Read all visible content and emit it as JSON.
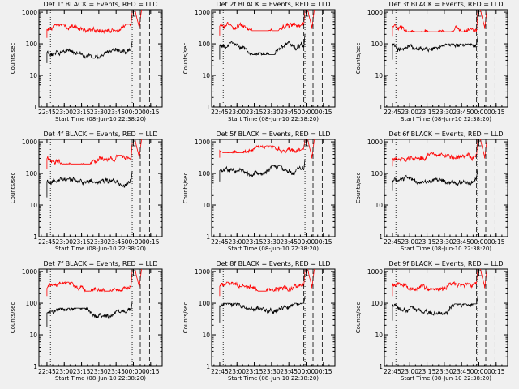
{
  "figure": {
    "background": "#f0f0f0"
  },
  "chart_data": [
    {
      "type": "line",
      "title": "Det 1f BLACK = Events, RED = LLD",
      "xlabel": "Start Time (08-Jun-10 22:38:20)",
      "ylabel": "Counts/sec",
      "x_ticks": [
        "22:45",
        "23:00",
        "23:15",
        "23:30",
        "23:45",
        "00:00",
        "00:15"
      ],
      "y_scale": "log",
      "y_ticks": [
        "1",
        "10",
        "100",
        "1000"
      ],
      "ylim": [
        1,
        1200
      ],
      "series": [
        {
          "color": "#ff0000",
          "start": "22:45",
          "end": "23:58",
          "level": 300,
          "min": 220,
          "max": 420
        },
        {
          "color": "#000000",
          "start": "22:45",
          "end": "23:58",
          "level": 55,
          "min": 35,
          "max": 75
        }
      ],
      "vlines": [
        {
          "style": "dotted",
          "x": "22:48"
        },
        {
          "style": "dashed",
          "x": "23:58"
        },
        {
          "style": "dotted",
          "x": "23:59"
        },
        {
          "style": "dashed",
          "x": "00:06"
        },
        {
          "style": "dashed",
          "x": "00:14"
        }
      ]
    },
    {
      "type": "line",
      "title": "Det 2f BLACK = Events, RED = LLD",
      "xlabel": "Start Time (08-Jun-10 22:38:20)",
      "ylabel": "Counts/sec",
      "x_ticks": [
        "22:45",
        "23:00",
        "23:15",
        "23:30",
        "23:45",
        "00:00",
        "00:15"
      ],
      "y_scale": "log",
      "y_ticks": [
        "1",
        "10",
        "100",
        "1000"
      ],
      "ylim": [
        1,
        1200
      ],
      "series": [
        {
          "color": "#ff0000",
          "start": "22:45",
          "end": "23:58",
          "level": 340,
          "min": 260,
          "max": 480
        },
        {
          "color": "#000000",
          "start": "22:45",
          "end": "23:58",
          "level": 75,
          "min": 45,
          "max": 130
        }
      ],
      "vlines": [
        {
          "style": "dotted",
          "x": "22:48"
        },
        {
          "style": "dashed",
          "x": "23:58"
        },
        {
          "style": "dotted",
          "x": "23:59"
        },
        {
          "style": "dashed",
          "x": "00:06"
        },
        {
          "style": "dashed",
          "x": "00:14"
        }
      ]
    },
    {
      "type": "line",
      "title": "Det 3f BLACK = Events, RED = LLD",
      "xlabel": "Start Time (08-Jun-10 22:38:20)",
      "ylabel": "Counts/sec",
      "x_ticks": [
        "22:45",
        "23:00",
        "23:15",
        "23:30",
        "23:45",
        "00:00",
        "00:15"
      ],
      "y_scale": "log",
      "y_ticks": [
        "1",
        "10",
        "100",
        "1000"
      ],
      "ylim": [
        1,
        1200
      ],
      "series": [
        {
          "color": "#ff0000",
          "start": "22:45",
          "end": "23:58",
          "level": 320,
          "min": 240,
          "max": 430
        },
        {
          "color": "#000000",
          "start": "22:45",
          "end": "23:58",
          "level": 80,
          "min": 45,
          "max": 100
        }
      ],
      "vlines": [
        {
          "style": "dotted",
          "x": "22:48"
        },
        {
          "style": "dashed",
          "x": "23:58"
        },
        {
          "style": "dotted",
          "x": "23:59"
        },
        {
          "style": "dashed",
          "x": "00:06"
        },
        {
          "style": "dashed",
          "x": "00:14"
        }
      ]
    },
    {
      "type": "line",
      "title": "Det 4f BLACK = Events, RED = LLD",
      "xlabel": "Start Time (08-Jun-10 22:38:20)",
      "ylabel": "Counts/sec",
      "x_ticks": [
        "22:45",
        "23:00",
        "23:15",
        "23:30",
        "23:45",
        "00:00",
        "00:15"
      ],
      "y_scale": "log",
      "y_ticks": [
        "1",
        "10",
        "100",
        "1000"
      ],
      "ylim": [
        1,
        1200
      ],
      "series": [
        {
          "color": "#ff0000",
          "start": "22:45",
          "end": "23:58",
          "level": 270,
          "min": 200,
          "max": 380
        },
        {
          "color": "#000000",
          "start": "22:45",
          "end": "23:58",
          "level": 55,
          "min": 25,
          "max": 75
        }
      ],
      "vlines": [
        {
          "style": "dotted",
          "x": "22:48"
        },
        {
          "style": "dashed",
          "x": "23:58"
        },
        {
          "style": "dotted",
          "x": "23:59"
        },
        {
          "style": "dashed",
          "x": "00:06"
        },
        {
          "style": "dashed",
          "x": "00:14"
        }
      ]
    },
    {
      "type": "line",
      "title": "Det 5f BLACK = Events, RED = LLD",
      "xlabel": "Start Time (08-Jun-10 22:38:20)",
      "ylabel": "Counts/sec",
      "x_ticks": [
        "22:45",
        "23:00",
        "23:15",
        "23:30",
        "23:45",
        "00:00",
        "00:15"
      ],
      "y_scale": "log",
      "y_ticks": [
        "1",
        "10",
        "100",
        "1000"
      ],
      "ylim": [
        1,
        1200
      ],
      "series": [
        {
          "color": "#ff0000",
          "start": "22:45",
          "end": "23:58",
          "level": 600,
          "min": 450,
          "max": 750
        },
        {
          "color": "#000000",
          "start": "22:45",
          "end": "23:58",
          "level": 140,
          "min": 80,
          "max": 180
        }
      ],
      "vlines": [
        {
          "style": "dotted",
          "x": "23:59"
        },
        {
          "style": "dashed",
          "x": "00:06"
        },
        {
          "style": "dashed",
          "x": "00:14"
        }
      ]
    },
    {
      "type": "line",
      "title": "Det 6f BLACK = Events, RED = LLD",
      "xlabel": "Start Time (08-Jun-10 22:38:20)",
      "ylabel": "Counts/sec",
      "x_ticks": [
        "22:45",
        "23:00",
        "23:15",
        "23:30",
        "23:45",
        "00:00",
        "00:15"
      ],
      "y_scale": "log",
      "y_ticks": [
        "1",
        "10",
        "100",
        "1000"
      ],
      "ylim": [
        1,
        1200
      ],
      "series": [
        {
          "color": "#ff0000",
          "start": "22:45",
          "end": "23:58",
          "level": 330,
          "min": 240,
          "max": 460
        },
        {
          "color": "#000000",
          "start": "22:45",
          "end": "23:58",
          "level": 65,
          "min": 40,
          "max": 90
        }
      ],
      "vlines": [
        {
          "style": "dotted",
          "x": "22:48"
        },
        {
          "style": "dashed",
          "x": "23:58"
        },
        {
          "style": "dotted",
          "x": "23:59"
        },
        {
          "style": "dashed",
          "x": "00:06"
        },
        {
          "style": "dashed",
          "x": "00:14"
        }
      ]
    },
    {
      "type": "line",
      "title": "Det 7f BLACK = Events, RED = LLD",
      "xlabel": "Start Time (08-Jun-10 22:38:20)",
      "ylabel": "Counts/sec",
      "x_ticks": [
        "22:45",
        "23:00",
        "23:15",
        "23:30",
        "23:45",
        "00:00",
        "00:15"
      ],
      "y_scale": "log",
      "y_ticks": [
        "1",
        "10",
        "100",
        "1000"
      ],
      "ylim": [
        1,
        1200
      ],
      "series": [
        {
          "color": "#ff0000",
          "start": "22:45",
          "end": "23:58",
          "level": 330,
          "min": 240,
          "max": 460
        },
        {
          "color": "#000000",
          "start": "22:45",
          "end": "23:58",
          "level": 55,
          "min": 25,
          "max": 70
        }
      ],
      "vlines": [
        {
          "style": "dotted",
          "x": "22:48"
        },
        {
          "style": "dashed",
          "x": "23:58"
        },
        {
          "style": "dotted",
          "x": "23:59"
        },
        {
          "style": "dashed",
          "x": "00:06"
        },
        {
          "style": "dashed",
          "x": "00:14"
        }
      ]
    },
    {
      "type": "line",
      "title": "Det 8f BLACK = Events, RED = LLD",
      "xlabel": "Start Time (08-Jun-10 22:38:20)",
      "ylabel": "Counts/sec",
      "x_ticks": [
        "22:45",
        "23:00",
        "23:15",
        "23:30",
        "23:45",
        "00:00",
        "00:15"
      ],
      "y_scale": "log",
      "y_ticks": [
        "1",
        "10",
        "100",
        "1000"
      ],
      "ylim": [
        1,
        1200
      ],
      "series": [
        {
          "color": "#ff0000",
          "start": "22:45",
          "end": "23:58",
          "level": 330,
          "min": 240,
          "max": 460
        },
        {
          "color": "#000000",
          "start": "22:45",
          "end": "23:58",
          "level": 75,
          "min": 35,
          "max": 100
        }
      ],
      "vlines": [
        {
          "style": "dotted",
          "x": "22:48"
        },
        {
          "style": "dashed",
          "x": "23:58"
        },
        {
          "style": "dotted",
          "x": "23:59"
        },
        {
          "style": "dashed",
          "x": "00:06"
        },
        {
          "style": "dashed",
          "x": "00:14"
        }
      ]
    },
    {
      "type": "line",
      "title": "Det 9f BLACK = Events, RED = LLD",
      "xlabel": "Start Time (08-Jun-10 22:38:20)",
      "ylabel": "Counts/sec",
      "x_ticks": [
        "22:45",
        "23:00",
        "23:15",
        "23:30",
        "23:45",
        "00:00",
        "00:15"
      ],
      "y_scale": "log",
      "y_ticks": [
        "1",
        "10",
        "100",
        "1000"
      ],
      "ylim": [
        1,
        1200
      ],
      "series": [
        {
          "color": "#ff0000",
          "start": "22:45",
          "end": "23:58",
          "level": 330,
          "min": 240,
          "max": 460
        },
        {
          "color": "#000000",
          "start": "22:45",
          "end": "23:58",
          "level": 70,
          "min": 40,
          "max": 95
        }
      ],
      "vlines": [
        {
          "style": "dotted",
          "x": "22:48"
        },
        {
          "style": "dashed",
          "x": "23:58"
        },
        {
          "style": "dotted",
          "x": "23:59"
        },
        {
          "style": "dashed",
          "x": "00:06"
        },
        {
          "style": "dashed",
          "x": "00:14"
        }
      ]
    }
  ]
}
